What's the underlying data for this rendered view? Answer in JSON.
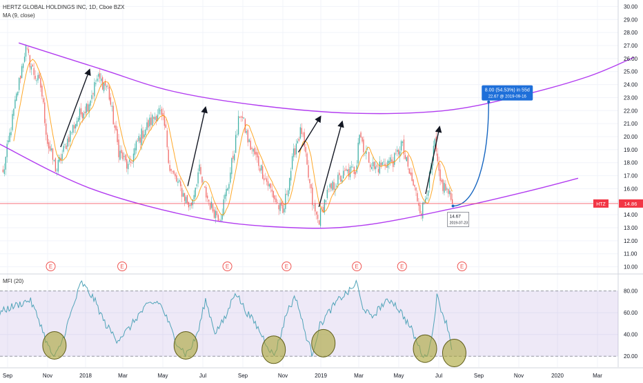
{
  "legend": {
    "symbol": "HERTZ GLOBAL HOLDINGS INC, 1D, Cboe BZX",
    "indicator": "MA (9, close)",
    "mfi": "MFI (20)"
  },
  "chart_data": [
    {
      "type": "candlestick",
      "title": "HERTZ GLOBAL HOLDINGS INC, 1D, Cboe BZX",
      "ylim": [
        9.5,
        30.5
      ],
      "y_ticks": [
        "10.00",
        "11.00",
        "12.00",
        "13.00",
        "14.00",
        "15.00",
        "16.00",
        "17.00",
        "18.00",
        "19.00",
        "20.00",
        "21.00",
        "22.00",
        "23.00",
        "24.00",
        "25.00",
        "26.00",
        "27.00",
        "28.00",
        "29.00",
        "30.00"
      ],
      "x_tick_labels": [
        "Sep",
        "Nov",
        "2018",
        "Mar",
        "May",
        "Jul",
        "Sep",
        "Nov",
        "2019",
        "Mar",
        "May",
        "Jul",
        "Sep",
        "Nov",
        "2020",
        "Mar"
      ],
      "price_anchors": [
        {
          "date": "2017-08-25",
          "close": 17.1
        },
        {
          "date": "2017-09-10",
          "close": 21.8
        },
        {
          "date": "2017-09-28",
          "close": 26.8
        },
        {
          "date": "2017-10-10",
          "close": 25.0
        },
        {
          "date": "2017-10-22",
          "close": 23.8
        },
        {
          "date": "2017-11-01",
          "close": 19.5
        },
        {
          "date": "2017-11-15",
          "close": 17.4
        },
        {
          "date": "2017-12-05",
          "close": 20.0
        },
        {
          "date": "2017-12-20",
          "close": 21.5
        },
        {
          "date": "2018-01-05",
          "close": 22.5
        },
        {
          "date": "2018-01-20",
          "close": 24.5
        },
        {
          "date": "2018-02-05",
          "close": 23.8
        },
        {
          "date": "2018-02-22",
          "close": 19.0
        },
        {
          "date": "2018-03-10",
          "close": 17.5
        },
        {
          "date": "2018-03-25",
          "close": 19.8
        },
        {
          "date": "2018-04-10",
          "close": 21.0
        },
        {
          "date": "2018-04-25",
          "close": 22.0
        },
        {
          "date": "2018-05-05",
          "close": 20.5
        },
        {
          "date": "2018-05-12",
          "close": 17.5
        },
        {
          "date": "2018-05-28",
          "close": 16.0
        },
        {
          "date": "2018-06-12",
          "close": 14.5
        },
        {
          "date": "2018-06-25",
          "close": 17.5
        },
        {
          "date": "2018-07-02",
          "close": 16.0
        },
        {
          "date": "2018-07-15",
          "close": 14.5
        },
        {
          "date": "2018-07-28",
          "close": 13.8
        },
        {
          "date": "2018-08-10",
          "close": 16.5
        },
        {
          "date": "2018-08-22",
          "close": 20.0
        },
        {
          "date": "2018-08-28",
          "close": 22.0
        },
        {
          "date": "2018-09-10",
          "close": 19.5
        },
        {
          "date": "2018-09-25",
          "close": 18.0
        },
        {
          "date": "2018-10-08",
          "close": 16.5
        },
        {
          "date": "2018-10-22",
          "close": 15.0
        },
        {
          "date": "2018-11-01",
          "close": 14.0
        },
        {
          "date": "2018-11-10",
          "close": 16.5
        },
        {
          "date": "2018-11-22",
          "close": 19.5
        },
        {
          "date": "2018-12-01",
          "close": 20.5
        },
        {
          "date": "2018-12-10",
          "close": 17.5
        },
        {
          "date": "2018-12-20",
          "close": 14.5
        },
        {
          "date": "2018-12-28",
          "close": 13.5
        },
        {
          "date": "2019-01-10",
          "close": 15.5
        },
        {
          "date": "2019-01-25",
          "close": 16.5
        },
        {
          "date": "2019-02-10",
          "close": 17.2
        },
        {
          "date": "2019-02-25",
          "close": 17.5
        },
        {
          "date": "2019-03-01",
          "close": 20.5
        },
        {
          "date": "2019-03-10",
          "close": 19.0
        },
        {
          "date": "2019-03-25",
          "close": 17.5
        },
        {
          "date": "2019-04-10",
          "close": 18.0
        },
        {
          "date": "2019-04-25",
          "close": 18.2
        },
        {
          "date": "2019-05-05",
          "close": 19.5
        },
        {
          "date": "2019-05-15",
          "close": 17.5
        },
        {
          "date": "2019-05-28",
          "close": 15.5
        },
        {
          "date": "2019-06-05",
          "close": 14.2
        },
        {
          "date": "2019-06-18",
          "close": 17.0
        },
        {
          "date": "2019-06-25",
          "close": 19.5
        },
        {
          "date": "2019-07-02",
          "close": 16.5
        },
        {
          "date": "2019-07-12",
          "close": 16.0
        },
        {
          "date": "2019-07-23",
          "close": 14.86
        }
      ],
      "last_price": {
        "label": "HTZ",
        "value": "14.86",
        "color": "#f23645"
      },
      "arc_lines": {
        "color": "#b23cf0",
        "upper": [
          {
            "date": "2017-09-18",
            "price": 27.2
          },
          {
            "date": "2018-01-25",
            "price": 25.2
          },
          {
            "date": "2018-05-15",
            "price": 23.5
          },
          {
            "date": "2018-09-25",
            "price": 22.4
          },
          {
            "date": "2019-02-20",
            "price": 21.8
          },
          {
            "date": "2019-07-10",
            "price": 22.0
          },
          {
            "date": "2019-10-30",
            "price": 23.1
          },
          {
            "date": "2020-02-15",
            "price": 24.6
          },
          {
            "date": "2020-04-25",
            "price": 26.1
          }
        ],
        "lower": [
          {
            "date": "2017-08-17",
            "price": 19.5
          },
          {
            "date": "2018-01-10",
            "price": 16.0
          },
          {
            "date": "2018-07-01",
            "price": 13.7
          },
          {
            "date": "2018-11-20",
            "price": 13.0
          },
          {
            "date": "2019-03-10",
            "price": 13.2
          },
          {
            "date": "2019-07-25",
            "price": 14.5
          },
          {
            "date": "2019-11-15",
            "price": 15.8
          },
          {
            "date": "2020-02-01",
            "price": 16.8
          }
        ]
      },
      "up_arrows": [
        {
          "from": {
            "date": "2017-11-22",
            "price": 19.2
          },
          "to": {
            "date": "2018-01-07",
            "price": 25.1
          }
        },
        {
          "from": {
            "date": "2018-06-08",
            "price": 16.2
          },
          "to": {
            "date": "2018-07-05",
            "price": 22.2
          }
        },
        {
          "from": {
            "date": "2018-11-26",
            "price": 18.8
          },
          "to": {
            "date": "2018-12-31",
            "price": 21.5
          }
        },
        {
          "from": {
            "date": "2018-12-29",
            "price": 14.6
          },
          "to": {
            "date": "2019-02-03",
            "price": 21.1
          }
        },
        {
          "from": {
            "date": "2019-06-11",
            "price": 15.6
          },
          "to": {
            "date": "2019-07-02",
            "price": 20.7
          }
        }
      ],
      "projection": {
        "from": {
          "date": "2019-07-23",
          "price": 14.67
        },
        "to": {
          "date": "2019-09-16",
          "price": 22.67
        }
      },
      "low_marker": {
        "price": "14.67",
        "date": "2019-07-23"
      },
      "target_label": {
        "line1": "8.00 (54.53%) in 55d",
        "line2": "22.67 @ 2019-09-16"
      },
      "earnings_dates": [
        "2017-11-06",
        "2018-02-28",
        "2018-08-08",
        "2018-11-07",
        "2019-02-26",
        "2019-05-06",
        "2019-08-06"
      ],
      "earnings_label": "E"
    },
    {
      "type": "line",
      "title": "MFI (20)",
      "ylim": [
        10,
        95
      ],
      "y_ticks": [
        "20.00",
        "40.00",
        "60.00",
        "80.00"
      ],
      "band": [
        20,
        80
      ],
      "mfi_anchors": [
        {
          "date": "2017-08-20",
          "value": 60
        },
        {
          "date": "2017-09-05",
          "value": 65
        },
        {
          "date": "2017-09-20",
          "value": 68
        },
        {
          "date": "2017-10-05",
          "value": 72
        },
        {
          "date": "2017-10-20",
          "value": 52
        },
        {
          "date": "2017-11-01",
          "value": 30
        },
        {
          "date": "2017-11-12",
          "value": 18
        },
        {
          "date": "2017-11-25",
          "value": 35
        },
        {
          "date": "2017-12-10",
          "value": 62
        },
        {
          "date": "2017-12-25",
          "value": 88
        },
        {
          "date": "2018-01-15",
          "value": 72
        },
        {
          "date": "2018-02-01",
          "value": 50
        },
        {
          "date": "2018-02-20",
          "value": 35
        },
        {
          "date": "2018-03-10",
          "value": 45
        },
        {
          "date": "2018-03-25",
          "value": 58
        },
        {
          "date": "2018-04-10",
          "value": 68
        },
        {
          "date": "2018-04-25",
          "value": 70
        },
        {
          "date": "2018-05-05",
          "value": 58
        },
        {
          "date": "2018-05-20",
          "value": 35
        },
        {
          "date": "2018-06-05",
          "value": 22
        },
        {
          "date": "2018-06-15",
          "value": 30
        },
        {
          "date": "2018-06-25",
          "value": 45
        },
        {
          "date": "2018-07-05",
          "value": 72
        },
        {
          "date": "2018-07-20",
          "value": 42
        },
        {
          "date": "2018-08-05",
          "value": 55
        },
        {
          "date": "2018-08-20",
          "value": 80
        },
        {
          "date": "2018-09-05",
          "value": 62
        },
        {
          "date": "2018-09-20",
          "value": 50
        },
        {
          "date": "2018-10-05",
          "value": 34
        },
        {
          "date": "2018-10-18",
          "value": 20
        },
        {
          "date": "2018-10-28",
          "value": 38
        },
        {
          "date": "2018-11-08",
          "value": 62
        },
        {
          "date": "2018-11-22",
          "value": 75
        },
        {
          "date": "2018-12-05",
          "value": 45
        },
        {
          "date": "2018-12-18",
          "value": 22
        },
        {
          "date": "2018-12-30",
          "value": 48
        },
        {
          "date": "2019-01-15",
          "value": 62
        },
        {
          "date": "2019-02-01",
          "value": 74
        },
        {
          "date": "2019-02-15",
          "value": 80
        },
        {
          "date": "2019-02-26",
          "value": 88
        },
        {
          "date": "2019-03-05",
          "value": 68
        },
        {
          "date": "2019-03-20",
          "value": 55
        },
        {
          "date": "2019-04-05",
          "value": 67
        },
        {
          "date": "2019-04-20",
          "value": 72
        },
        {
          "date": "2019-05-05",
          "value": 60
        },
        {
          "date": "2019-05-20",
          "value": 45
        },
        {
          "date": "2019-06-01",
          "value": 28
        },
        {
          "date": "2019-06-10",
          "value": 18
        },
        {
          "date": "2019-06-20",
          "value": 35
        },
        {
          "date": "2019-06-28",
          "value": 75
        },
        {
          "date": "2019-07-08",
          "value": 58
        },
        {
          "date": "2019-07-16",
          "value": 45
        },
        {
          "date": "2019-07-23",
          "value": 20
        }
      ],
      "highlight_circles": [
        {
          "date": "2017-11-12",
          "value": 30
        },
        {
          "date": "2018-06-05",
          "value": 30
        },
        {
          "date": "2018-10-18",
          "value": 26
        },
        {
          "date": "2019-01-05",
          "value": 32
        },
        {
          "date": "2019-06-10",
          "value": 27
        },
        {
          "date": "2019-07-25",
          "value": 23
        }
      ]
    }
  ]
}
